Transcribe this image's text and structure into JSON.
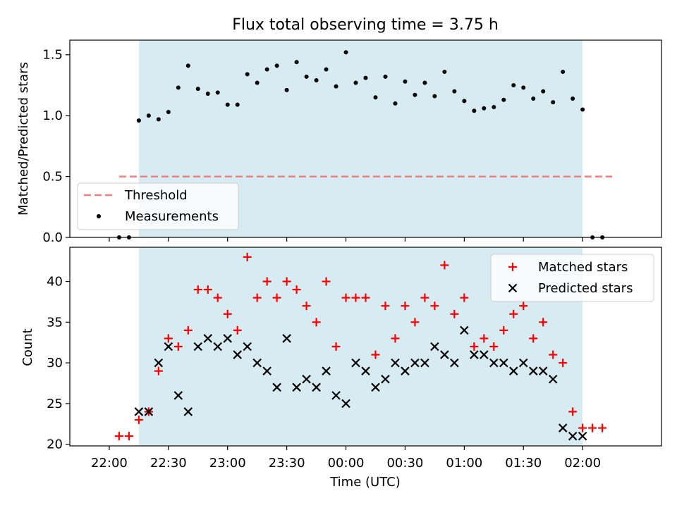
{
  "title": "Flux total observing time = 3.75 h",
  "colors": {
    "observing_band": "#add8e6",
    "threshold": "#f08080",
    "measurements": "#000000",
    "matched": "#ff0000",
    "predicted": "#000000"
  },
  "chart_data": [
    {
      "type": "scatter",
      "ylabel": "Matched/Predicted stars",
      "ylim": [
        0,
        1.62
      ],
      "yticks": [
        0.0,
        0.5,
        1.0,
        1.5
      ],
      "ytick_labels": [
        "0.0",
        "0.5",
        "1.0",
        "1.5"
      ],
      "xlim_minutes": [
        -20,
        280
      ],
      "observing_window_minutes": [
        15,
        240
      ],
      "legend_position": "lower-left",
      "threshold": {
        "name": "Threshold",
        "value": 0.5,
        "x_minutes": [
          5,
          255
        ]
      },
      "series": [
        {
          "name": "Measurements",
          "marker": "dot",
          "x_minutes": [
            5,
            10,
            15,
            20,
            25,
            30,
            35,
            40,
            45,
            50,
            55,
            60,
            65,
            70,
            75,
            80,
            85,
            90,
            95,
            100,
            105,
            110,
            115,
            120,
            125,
            130,
            135,
            140,
            145,
            150,
            155,
            160,
            165,
            170,
            175,
            180,
            185,
            190,
            195,
            200,
            205,
            210,
            215,
            220,
            225,
            230,
            235,
            240,
            245,
            250
          ],
          "values": [
            0,
            0,
            0.96,
            1.0,
            0.97,
            1.03,
            1.23,
            1.41,
            1.22,
            1.18,
            1.19,
            1.09,
            1.09,
            1.34,
            1.27,
            1.38,
            1.41,
            1.21,
            1.44,
            1.32,
            1.29,
            1.38,
            1.24,
            1.52,
            1.27,
            1.31,
            1.15,
            1.32,
            1.1,
            1.28,
            1.17,
            1.27,
            1.16,
            1.36,
            1.2,
            1.12,
            1.04,
            1.06,
            1.07,
            1.13,
            1.25,
            1.23,
            1.14,
            1.2,
            1.11,
            1.36,
            1.14,
            1.05,
            0,
            0
          ]
        }
      ]
    },
    {
      "type": "scatter",
      "ylabel": "Count",
      "xlabel": "Time (UTC)",
      "ylim": [
        19.8,
        44.2
      ],
      "yticks": [
        20,
        25,
        30,
        35,
        40
      ],
      "ytick_labels": [
        "20",
        "25",
        "30",
        "35",
        "40"
      ],
      "xlim_minutes": [
        -20,
        280
      ],
      "xticks_minutes": [
        0,
        30,
        60,
        90,
        120,
        150,
        180,
        210,
        240
      ],
      "xtick_labels": [
        "22:00",
        "22:30",
        "23:00",
        "23:30",
        "00:00",
        "00:30",
        "01:00",
        "01:30",
        "02:00"
      ],
      "observing_window_minutes": [
        15,
        240
      ],
      "legend_position": "upper-right",
      "series": [
        {
          "name": "Matched stars",
          "marker": "plus",
          "x_minutes": [
            5,
            10,
            15,
            20,
            25,
            30,
            35,
            40,
            45,
            50,
            55,
            60,
            65,
            70,
            75,
            80,
            85,
            90,
            95,
            100,
            105,
            110,
            115,
            120,
            125,
            130,
            135,
            140,
            145,
            150,
            155,
            160,
            165,
            170,
            175,
            180,
            185,
            190,
            195,
            200,
            205,
            210,
            215,
            220,
            225,
            230,
            235,
            240,
            245,
            250
          ],
          "values": [
            21,
            21,
            23,
            24,
            29,
            33,
            32,
            34,
            39,
            39,
            38,
            36,
            34,
            43,
            38,
            40,
            38,
            40,
            39,
            37,
            35,
            40,
            32,
            38,
            38,
            38,
            31,
            37,
            33,
            37,
            35,
            38,
            37,
            42,
            36,
            38,
            32,
            33,
            32,
            34,
            36,
            37,
            33,
            35,
            31,
            30,
            24,
            22,
            22,
            22
          ]
        },
        {
          "name": "Predicted stars",
          "marker": "x",
          "x_minutes": [
            15,
            20,
            25,
            30,
            35,
            40,
            45,
            50,
            55,
            60,
            65,
            70,
            75,
            80,
            85,
            90,
            95,
            100,
            105,
            110,
            115,
            120,
            125,
            130,
            135,
            140,
            145,
            150,
            155,
            160,
            165,
            170,
            175,
            180,
            185,
            190,
            195,
            200,
            205,
            210,
            215,
            220,
            225,
            230,
            235,
            240
          ],
          "values": [
            24,
            24,
            30,
            32,
            26,
            24,
            32,
            33,
            32,
            33,
            31,
            32,
            30,
            29,
            27,
            33,
            27,
            28,
            27,
            29,
            26,
            25,
            30,
            29,
            27,
            28,
            30,
            29,
            30,
            30,
            32,
            31,
            30,
            34,
            31,
            31,
            30,
            30,
            29,
            30,
            29,
            29,
            28,
            22,
            21,
            21
          ]
        }
      ]
    }
  ]
}
